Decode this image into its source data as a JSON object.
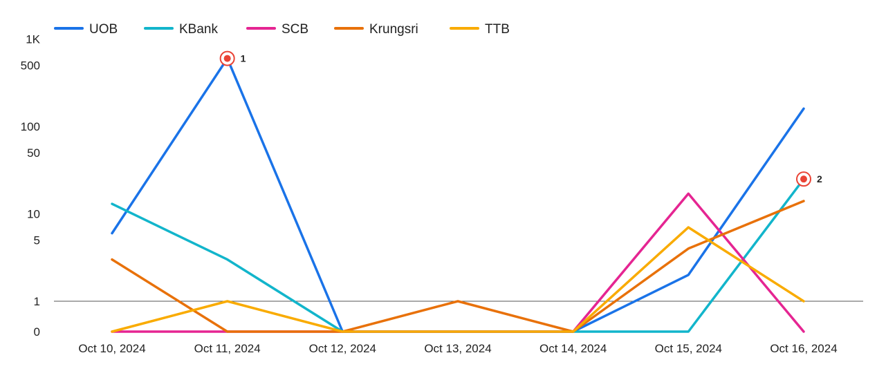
{
  "chart_data": {
    "type": "line",
    "title": "",
    "xlabel": "",
    "ylabel": "",
    "y_scale": "symlog",
    "ylim": [
      0,
      1000
    ],
    "y_ticks": [
      {
        "value": 0,
        "label": "0"
      },
      {
        "value": 1,
        "label": "1"
      },
      {
        "value": 5,
        "label": "5"
      },
      {
        "value": 10,
        "label": "10"
      },
      {
        "value": 50,
        "label": "50"
      },
      {
        "value": 100,
        "label": "100"
      },
      {
        "value": 500,
        "label": "500"
      },
      {
        "value": 1000,
        "label": "1K"
      }
    ],
    "baseline_value": 1,
    "grid": false,
    "legend_position": "top-left",
    "categories": [
      "Oct 10, 2024",
      "Oct 11, 2024",
      "Oct 12, 2024",
      "Oct 13, 2024",
      "Oct 14, 2024",
      "Oct 15, 2024",
      "Oct 16, 2024"
    ],
    "series": [
      {
        "name": "UOB",
        "color": "#1a73e8",
        "values": [
          6,
          600,
          0,
          0,
          0,
          2,
          160
        ]
      },
      {
        "name": "KBank",
        "color": "#12b5cb",
        "values": [
          13,
          3,
          0,
          0,
          0,
          0,
          25
        ]
      },
      {
        "name": "SCB",
        "color": "#e52592",
        "values": [
          0,
          0,
          0,
          0,
          0,
          17,
          0
        ]
      },
      {
        "name": "Krungsri",
        "color": "#e8710a",
        "values": [
          3,
          0,
          0,
          1,
          0,
          4,
          14
        ]
      },
      {
        "name": "TTB",
        "color": "#f9ab00",
        "values": [
          0,
          1,
          0,
          0,
          0,
          7,
          1
        ]
      }
    ],
    "annotations": [
      {
        "label": "1",
        "series": "UOB",
        "category": "Oct 11, 2024",
        "value": 600
      },
      {
        "label": "2",
        "series": "KBank",
        "category": "Oct 16, 2024",
        "value": 25
      }
    ]
  }
}
